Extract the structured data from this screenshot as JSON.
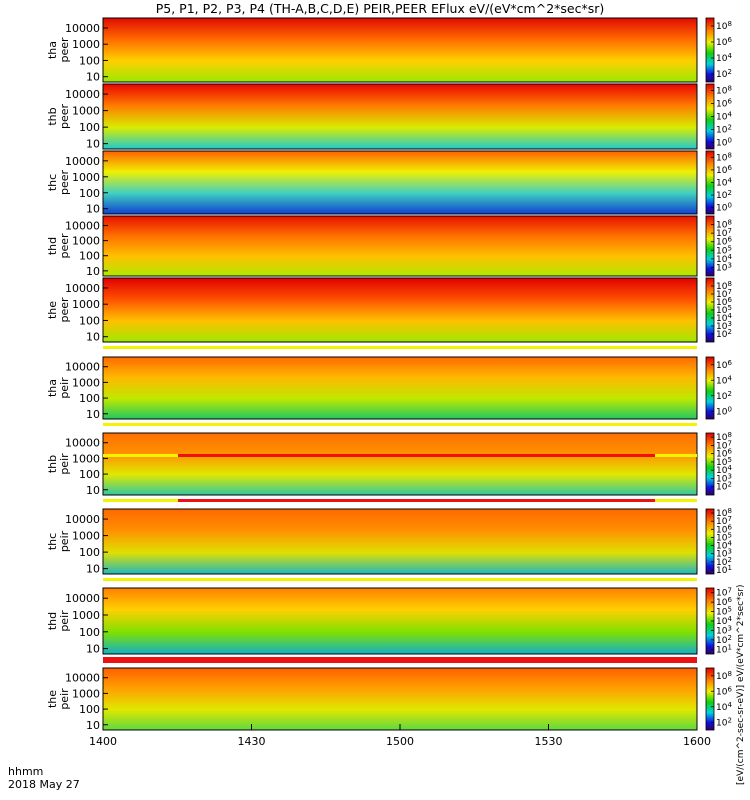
{
  "chart_data": {
    "type": "heatmap",
    "title": "P5, P1, P2, P3, P4 (TH-A,B,C,D,E) PEIR,PEER EFlux eV/(eV*cm^2*sec*sr)",
    "time_axis": {
      "label_top": "hhmm",
      "label_bottom": "2018 May 27",
      "ticks": [
        "1400",
        "1430",
        "1500",
        "1530",
        "1600"
      ]
    },
    "energy_ticks": [
      "10000",
      "1000",
      "100",
      "10"
    ],
    "colorbar_label": "[eV/(cm^2-sec-sr-eV)] eV/(eV*cm^2*sec*sr)",
    "panels": [
      {
        "id": "tha_peer",
        "label1": "tha",
        "label2": "peer",
        "cb_ticks": [
          "10^8",
          "10^6",
          "10^4",
          "10^2"
        ],
        "cb_range": [
          1,
          9
        ]
      },
      {
        "id": "thb_peer",
        "label1": "thb",
        "label2": "peer",
        "cb_ticks": [
          "10^8",
          "10^6",
          "10^4",
          "10^2",
          "10^0"
        ],
        "cb_range": [
          -1,
          9
        ]
      },
      {
        "id": "thc_peer",
        "label1": "thc",
        "label2": "peer",
        "cb_ticks": [
          "10^8",
          "10^6",
          "10^4",
          "10^2",
          "10^0"
        ],
        "cb_range": [
          -1,
          9
        ]
      },
      {
        "id": "thd_peer",
        "label1": "thd",
        "label2": "peer",
        "cb_ticks": [
          "10^8",
          "10^7",
          "10^6",
          "10^5",
          "10^4",
          "10^3"
        ],
        "cb_range": [
          2,
          9
        ]
      },
      {
        "id": "the_peer",
        "label1": "the",
        "label2": "peer",
        "cb_ticks": [
          "10^8",
          "10^7",
          "10^6",
          "10^5",
          "10^4",
          "10^3",
          "10^2"
        ],
        "cb_range": [
          1,
          9
        ]
      },
      {
        "id": "tha_peir",
        "label1": "tha",
        "label2": "peir",
        "cb_ticks": [
          "10^6",
          "10^4",
          "10^2",
          "10^0"
        ],
        "cb_range": [
          -1,
          7
        ]
      },
      {
        "id": "thb_peir",
        "label1": "thb",
        "label2": "peir",
        "cb_ticks": [
          "10^8",
          "10^7",
          "10^6",
          "10^5",
          "10^4",
          "10^3",
          "10^2"
        ],
        "cb_range": [
          1,
          8.5
        ]
      },
      {
        "id": "thc_peir",
        "label1": "thc",
        "label2": "peir",
        "cb_ticks": [
          "10^8",
          "10^7",
          "10^6",
          "10^5",
          "10^4",
          "10^3",
          "10^2",
          "10^1"
        ],
        "cb_range": [
          0.5,
          8.5
        ]
      },
      {
        "id": "thd_peir",
        "label1": "thd",
        "label2": "peir",
        "cb_ticks": [
          "10^7",
          "10^6",
          "10^5",
          "10^4",
          "10^3",
          "10^2",
          "10^1"
        ],
        "cb_range": [
          0.5,
          7.5
        ]
      },
      {
        "id": "the_peir",
        "label1": "the",
        "label2": "peir",
        "cb_ticks": [
          "10^8",
          "10^6",
          "10^4",
          "10^2"
        ],
        "cb_range": [
          1,
          9
        ]
      }
    ]
  },
  "colors": {
    "background": "#ffffff",
    "frame": "#000000",
    "flag_red": "#ee1111",
    "flag_yellow": "#f4f400"
  }
}
